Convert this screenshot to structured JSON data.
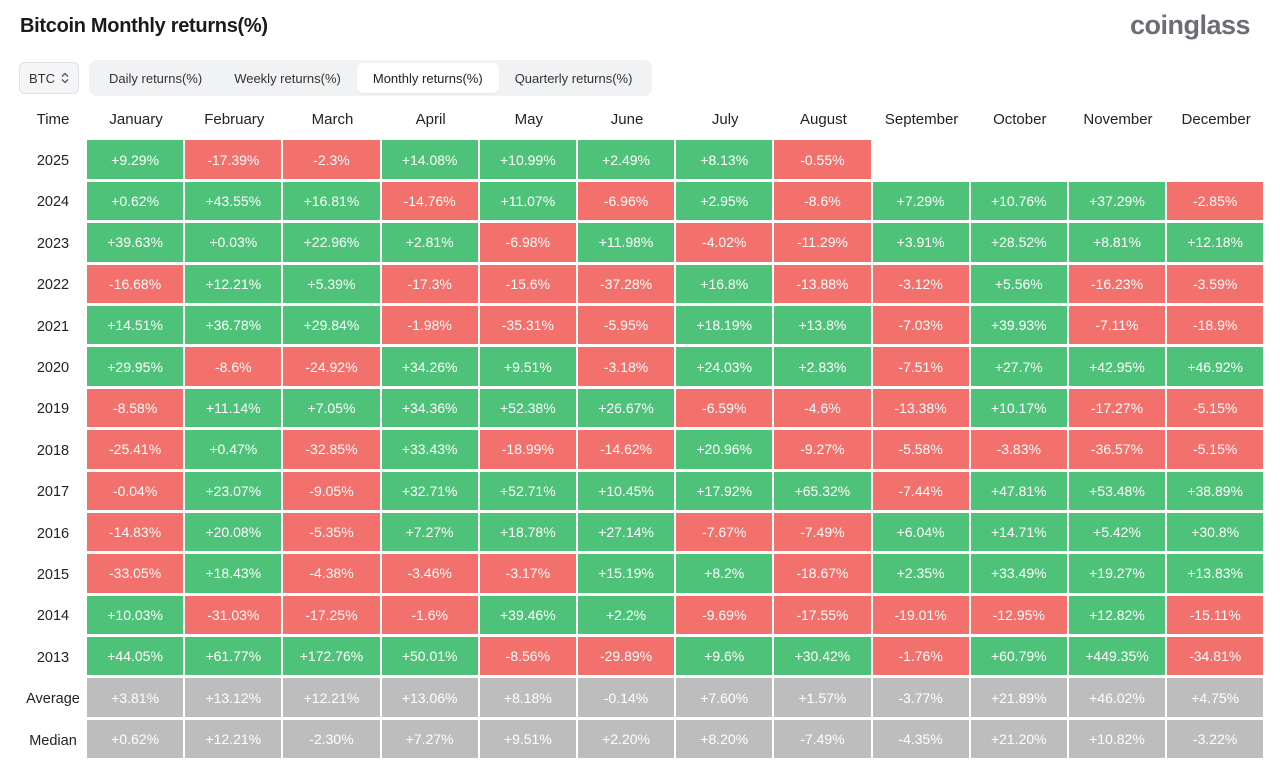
{
  "header": {
    "title": "Bitcoin Monthly returns(%)",
    "logo": "coinglass"
  },
  "coin_select": {
    "value": "BTC"
  },
  "tabs": [
    {
      "label": "Daily returns(%)",
      "active": false
    },
    {
      "label": "Weekly returns(%)",
      "active": false
    },
    {
      "label": "Monthly returns(%)",
      "active": true
    },
    {
      "label": "Quarterly returns(%)",
      "active": false
    }
  ],
  "colors": {
    "positive": "#4fc27a",
    "negative": "#f2716c",
    "stat": "#bdbdbd"
  },
  "table": {
    "columns": [
      "Time",
      "January",
      "February",
      "March",
      "April",
      "May",
      "June",
      "July",
      "August",
      "September",
      "October",
      "November",
      "December"
    ],
    "rows": [
      {
        "label": "2025",
        "values": [
          "+9.29%",
          "-17.39%",
          "-2.3%",
          "+14.08%",
          "+10.99%",
          "+2.49%",
          "+8.13%",
          "-0.55%",
          "",
          "",
          "",
          ""
        ]
      },
      {
        "label": "2024",
        "values": [
          "+0.62%",
          "+43.55%",
          "+16.81%",
          "-14.76%",
          "+11.07%",
          "-6.96%",
          "+2.95%",
          "-8.6%",
          "+7.29%",
          "+10.76%",
          "+37.29%",
          "-2.85%"
        ]
      },
      {
        "label": "2023",
        "values": [
          "+39.63%",
          "+0.03%",
          "+22.96%",
          "+2.81%",
          "-6.98%",
          "+11.98%",
          "-4.02%",
          "-11.29%",
          "+3.91%",
          "+28.52%",
          "+8.81%",
          "+12.18%"
        ]
      },
      {
        "label": "2022",
        "values": [
          "-16.68%",
          "+12.21%",
          "+5.39%",
          "-17.3%",
          "-15.6%",
          "-37.28%",
          "+16.8%",
          "-13.88%",
          "-3.12%",
          "+5.56%",
          "-16.23%",
          "-3.59%"
        ]
      },
      {
        "label": "2021",
        "values": [
          "+14.51%",
          "+36.78%",
          "+29.84%",
          "-1.98%",
          "-35.31%",
          "-5.95%",
          "+18.19%",
          "+13.8%",
          "-7.03%",
          "+39.93%",
          "-7.11%",
          "-18.9%"
        ]
      },
      {
        "label": "2020",
        "values": [
          "+29.95%",
          "-8.6%",
          "-24.92%",
          "+34.26%",
          "+9.51%",
          "-3.18%",
          "+24.03%",
          "+2.83%",
          "-7.51%",
          "+27.7%",
          "+42.95%",
          "+46.92%"
        ]
      },
      {
        "label": "2019",
        "values": [
          "-8.58%",
          "+11.14%",
          "+7.05%",
          "+34.36%",
          "+52.38%",
          "+26.67%",
          "-6.59%",
          "-4.6%",
          "-13.38%",
          "+10.17%",
          "-17.27%",
          "-5.15%"
        ]
      },
      {
        "label": "2018",
        "values": [
          "-25.41%",
          "+0.47%",
          "-32.85%",
          "+33.43%",
          "-18.99%",
          "-14.62%",
          "+20.96%",
          "-9.27%",
          "-5.58%",
          "-3.83%",
          "-36.57%",
          "-5.15%"
        ]
      },
      {
        "label": "2017",
        "values": [
          "-0.04%",
          "+23.07%",
          "-9.05%",
          "+32.71%",
          "+52.71%",
          "+10.45%",
          "+17.92%",
          "+65.32%",
          "-7.44%",
          "+47.81%",
          "+53.48%",
          "+38.89%"
        ]
      },
      {
        "label": "2016",
        "values": [
          "-14.83%",
          "+20.08%",
          "-5.35%",
          "+7.27%",
          "+18.78%",
          "+27.14%",
          "-7.67%",
          "-7.49%",
          "+6.04%",
          "+14.71%",
          "+5.42%",
          "+30.8%"
        ]
      },
      {
        "label": "2015",
        "values": [
          "-33.05%",
          "+18.43%",
          "-4.38%",
          "-3.46%",
          "-3.17%",
          "+15.19%",
          "+8.2%",
          "-18.67%",
          "+2.35%",
          "+33.49%",
          "+19.27%",
          "+13.83%"
        ]
      },
      {
        "label": "2014",
        "values": [
          "+10.03%",
          "-31.03%",
          "-17.25%",
          "-1.6%",
          "+39.46%",
          "+2.2%",
          "-9.69%",
          "-17.55%",
          "-19.01%",
          "-12.95%",
          "+12.82%",
          "-15.11%"
        ]
      },
      {
        "label": "2013",
        "values": [
          "+44.05%",
          "+61.77%",
          "+172.76%",
          "+50.01%",
          "-8.56%",
          "-29.89%",
          "+9.6%",
          "+30.42%",
          "-1.76%",
          "+60.79%",
          "+449.35%",
          "-34.81%"
        ]
      }
    ],
    "stats": [
      {
        "label": "Average",
        "values": [
          "+3.81%",
          "+13.12%",
          "+12.21%",
          "+13.06%",
          "+8.18%",
          "-0.14%",
          "+7.60%",
          "+1.57%",
          "-3.77%",
          "+21.89%",
          "+46.02%",
          "+4.75%"
        ]
      },
      {
        "label": "Median",
        "values": [
          "+0.62%",
          "+12.21%",
          "-2.30%",
          "+7.27%",
          "+9.51%",
          "+2.20%",
          "+8.20%",
          "-7.49%",
          "-4.35%",
          "+21.20%",
          "+10.82%",
          "-3.22%"
        ]
      }
    ]
  }
}
